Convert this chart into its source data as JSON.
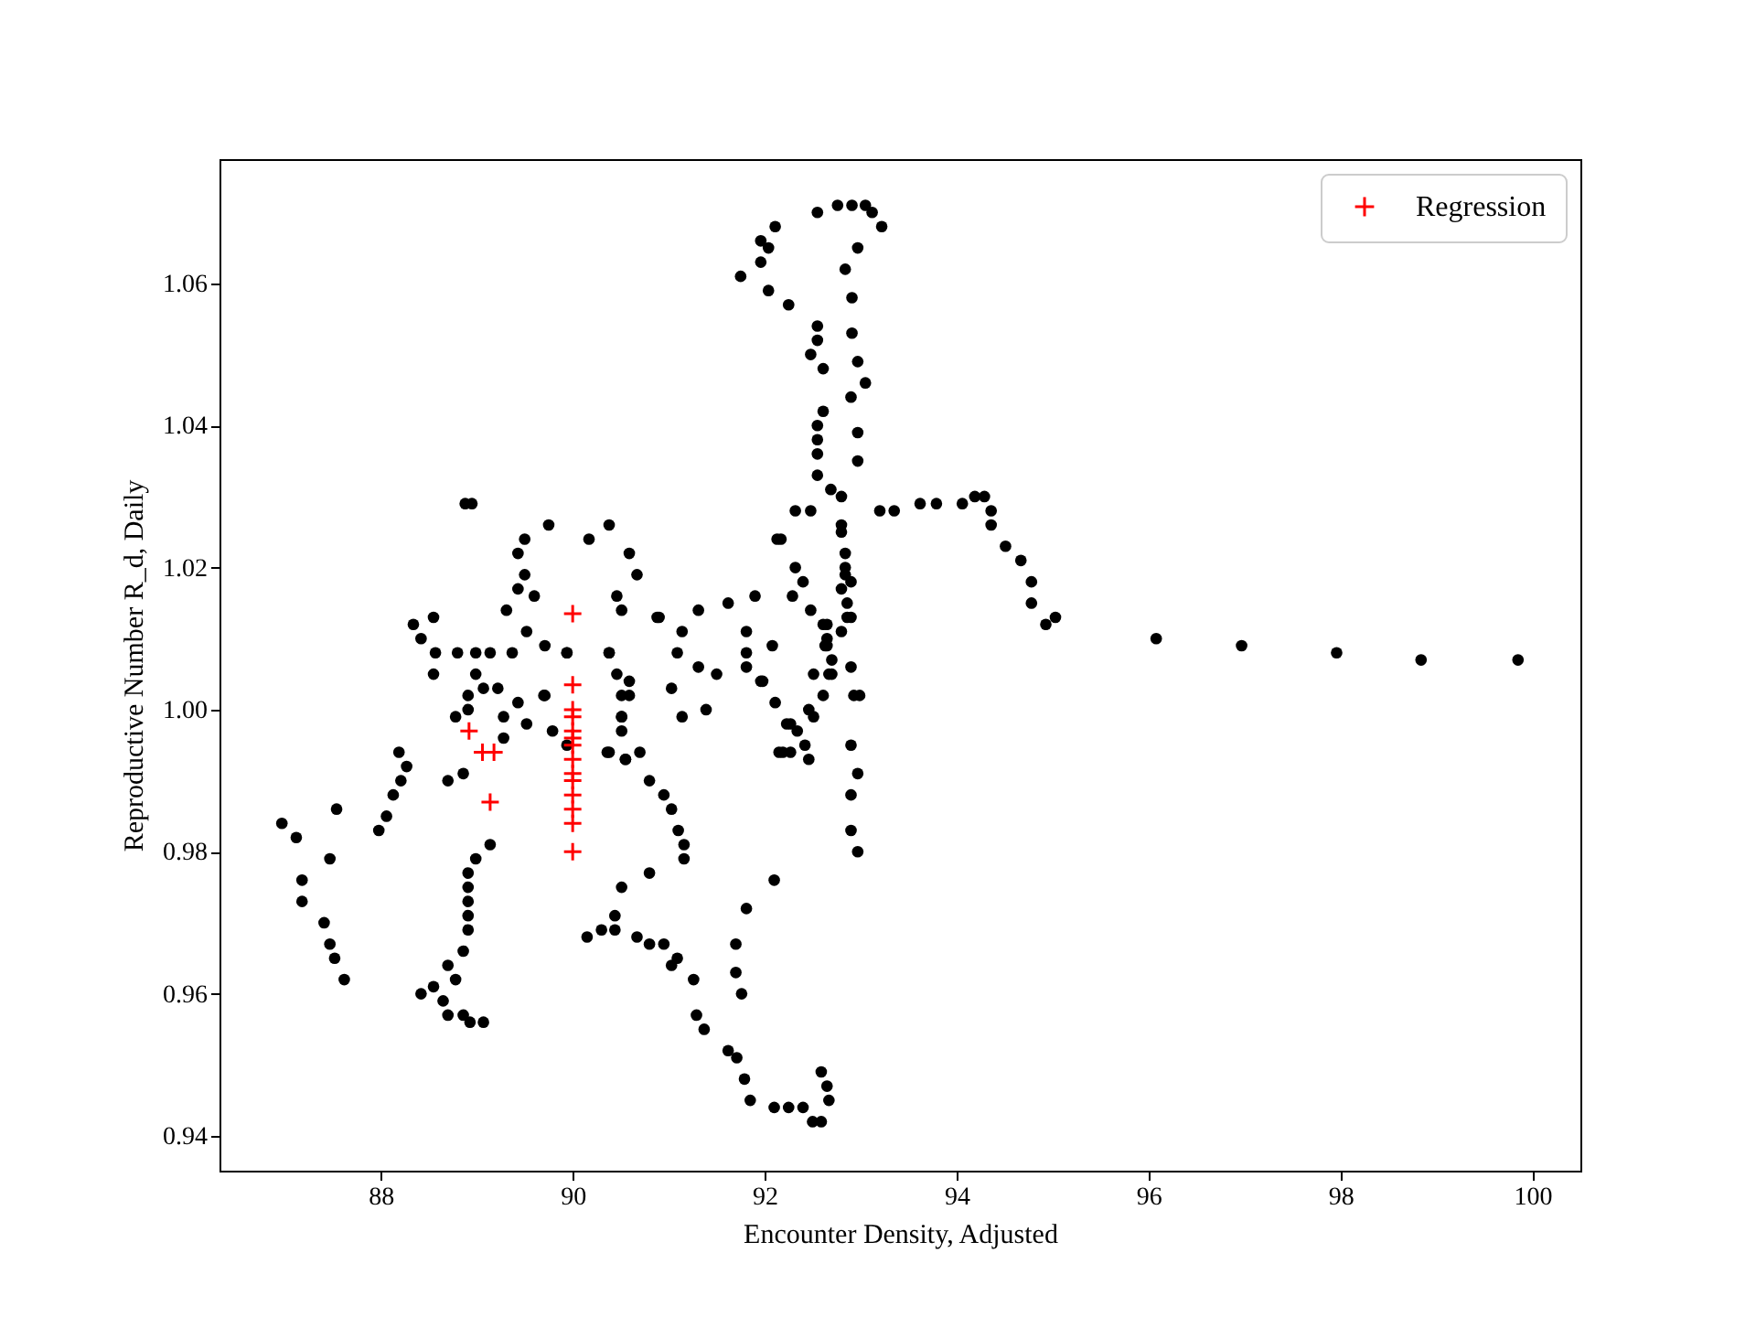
{
  "chart_data": {
    "type": "scatter",
    "xlabel": "Encounter Density, Adjusted",
    "ylabel": "Reproductive Number R_d, Daily",
    "xlim": [
      86.32,
      100.5
    ],
    "ylim": [
      0.9351,
      1.0775
    ],
    "xticks": [
      88,
      90,
      92,
      94,
      96,
      98,
      100
    ],
    "yticks": [
      0.94,
      0.96,
      0.98,
      {
        "value": 1,
        "label": "1.00"
      },
      1.02,
      1.04,
      1.06
    ],
    "grid": false,
    "legend": "top right",
    "series": [
      {
        "color": "#000000",
        "marker": "circle",
        "x": [
          86.97,
          87.12,
          87.18,
          87.18,
          87.41,
          87.47,
          87.52,
          87.62,
          87.54,
          87.47,
          87.98,
          88.06,
          88.13,
          88.21,
          88.27,
          88.19,
          88.7,
          88.86,
          89.14,
          88.99,
          88.91,
          88.91,
          88.91,
          88.91,
          88.91,
          88.86,
          88.7,
          88.78,
          88.55,
          88.42,
          88.65,
          88.7,
          88.86,
          88.93,
          89.07,
          88.34,
          88.42,
          88.55,
          88.57,
          88.8,
          88.99,
          89.14,
          89.37,
          88.55,
          88.99,
          89.07,
          89.22,
          88.91,
          88.91,
          88.78,
          89.28,
          89.28,
          89.43,
          89.71,
          89.6,
          89.52,
          89.31,
          89.43,
          89.5,
          89.5,
          89.43,
          89.75,
          88.88,
          88.95,
          89.7,
          89.52,
          89.79,
          89.94,
          89.94,
          90.36,
          90.55,
          90.8,
          90.51,
          90.51,
          90.59,
          90.38,
          90.46,
          90.51,
          90.59,
          90.17,
          90.38,
          90.67,
          90.88,
          91.03,
          90.8,
          90.51,
          90.44,
          90.44,
          90.3,
          90.15,
          90.67,
          90.8,
          90.95,
          91.03,
          91.81,
          91.7,
          91.7,
          91.76,
          92.1,
          91.26,
          91.09,
          91.29,
          91.37,
          91.62,
          91.71,
          91.79,
          91.85,
          92.1,
          92.25,
          92.4,
          92.5,
          92.59,
          92.67,
          92.65,
          92.59,
          92.9,
          92.97,
          92.9,
          92.9,
          92.97,
          92.15,
          92.27,
          92.42,
          92.34,
          92.51,
          92.61,
          92.7,
          92.7,
          92.65,
          92.8,
          92.86,
          92.9,
          92.84,
          92.23,
          92.55,
          92.55,
          92.55,
          92.55,
          92.61,
          92.69,
          92.8,
          92.97,
          92.97,
          92.9,
          93.05,
          92.97,
          92.91,
          92.91,
          92.84,
          92.97,
          93.22,
          93.12,
          93.05,
          92.91,
          92.76,
          92.55,
          92.11,
          91.96,
          92.04,
          91.96,
          91.75,
          92.04,
          92.25,
          92.55,
          92.55,
          92.48,
          92.61,
          92.32,
          92.48,
          93.2,
          93.35,
          93.62,
          93.79,
          94.06,
          94.19,
          94.29,
          94.36,
          94.36,
          94.51,
          94.67,
          94.78,
          94.78,
          95.03,
          94.93,
          96.08,
          96.97,
          97.96,
          98.84,
          99.85,
          92.8,
          92.84,
          92.84,
          92.8,
          92.9,
          92.65,
          92.65,
          92.67,
          92.9,
          92.99,
          92.13,
          92.32,
          92.4,
          92.29,
          91.9,
          91.62,
          91.81,
          91.81,
          92.08,
          91.81,
          91.96,
          92.11,
          91.31,
          91.14,
          91.09,
          91.03,
          91.14,
          91.31,
          91.5,
          91.39,
          91.98,
          92.17,
          92.48,
          92.61,
          92.63,
          92.51,
          92.46,
          92.27,
          92.19,
          92.46,
          92.8,
          92.86,
          92.93,
          90.95,
          91.1,
          91.16,
          91.16,
          90.9,
          90.7,
          90.38,
          90.46,
          90.59,
          90.51,
          90.51,
          90.38,
          90.55,
          89.71,
          89.94
        ],
        "values": [
          0.984,
          0.982,
          0.976,
          0.973,
          0.97,
          0.967,
          0.965,
          0.962,
          0.986,
          0.979,
          0.983,
          0.985,
          0.988,
          0.99,
          0.992,
          0.994,
          0.99,
          0.991,
          0.981,
          0.979,
          0.977,
          0.975,
          0.973,
          0.971,
          0.969,
          0.966,
          0.964,
          0.962,
          0.961,
          0.96,
          0.959,
          0.957,
          0.957,
          0.956,
          0.956,
          1.012,
          1.01,
          1.013,
          1.008,
          1.008,
          1.008,
          1.008,
          1.008,
          1.005,
          1.005,
          1.003,
          1.003,
          1.002,
          1,
          0.999,
          0.999,
          0.996,
          1.001,
          1.009,
          1.016,
          1.011,
          1.014,
          1.017,
          1.019,
          1.024,
          1.022,
          1.026,
          1.029,
          1.029,
          1.002,
          0.998,
          0.997,
          0.995,
          1.008,
          0.994,
          0.993,
          0.99,
          1.002,
          0.999,
          1.004,
          1.008,
          1.016,
          1.014,
          1.022,
          1.024,
          1.026,
          1.019,
          1.013,
          0.986,
          0.977,
          0.975,
          0.971,
          0.969,
          0.969,
          0.968,
          0.968,
          0.967,
          0.967,
          0.964,
          0.972,
          0.967,
          0.963,
          0.96,
          0.976,
          0.962,
          0.965,
          0.957,
          0.955,
          0.952,
          0.951,
          0.948,
          0.945,
          0.944,
          0.944,
          0.944,
          0.942,
          0.942,
          0.945,
          0.947,
          0.949,
          0.995,
          0.991,
          0.988,
          0.983,
          0.98,
          0.994,
          0.994,
          0.995,
          0.997,
          0.999,
          1.002,
          1.005,
          1.007,
          1.01,
          1.011,
          1.015,
          1.018,
          1.02,
          0.998,
          1.04,
          1.038,
          1.036,
          1.033,
          1.042,
          1.031,
          1.03,
          1.035,
          1.039,
          1.044,
          1.046,
          1.049,
          1.053,
          1.058,
          1.062,
          1.065,
          1.068,
          1.07,
          1.071,
          1.071,
          1.071,
          1.07,
          1.068,
          1.066,
          1.065,
          1.063,
          1.061,
          1.059,
          1.057,
          1.054,
          1.052,
          1.05,
          1.048,
          1.028,
          1.028,
          1.028,
          1.028,
          1.029,
          1.029,
          1.029,
          1.03,
          1.03,
          1.028,
          1.026,
          1.023,
          1.021,
          1.018,
          1.015,
          1.013,
          1.012,
          1.01,
          1.009,
          1.008,
          1.007,
          1.007,
          1.025,
          1.022,
          1.019,
          1.017,
          1.013,
          1.012,
          1.009,
          1.005,
          1.006,
          1.002,
          1.024,
          1.02,
          1.018,
          1.016,
          1.016,
          1.015,
          1.011,
          1.008,
          1.009,
          1.006,
          1.004,
          1.001,
          1.014,
          1.011,
          1.008,
          1.003,
          0.999,
          1.006,
          1.005,
          1,
          1.004,
          1.024,
          1.014,
          1.012,
          1.009,
          1.005,
          1,
          0.998,
          0.994,
          0.993,
          1.026,
          1.013,
          1.002,
          0.988,
          0.983,
          0.981,
          0.979,
          1.013,
          0.994,
          1.008,
          1.005,
          1.002,
          0.999,
          0.997,
          0.994,
          0.993,
          1.002,
          1.008
        ]
      },
      {
        "name": "Regression",
        "color": "#ff0000",
        "marker": "cross",
        "x": [
          88.92,
          89.06,
          89.18,
          89.14,
          90,
          90,
          90,
          90,
          90,
          90,
          90,
          90,
          90,
          90,
          90,
          90,
          90,
          90
        ],
        "values": [
          0.997,
          0.994,
          0.994,
          0.987,
          1.0135,
          1.0035,
          1.0,
          0.999,
          0.997,
          0.996,
          0.995,
          0.993,
          0.991,
          0.99,
          0.988,
          0.986,
          0.984,
          0.98
        ]
      }
    ]
  }
}
